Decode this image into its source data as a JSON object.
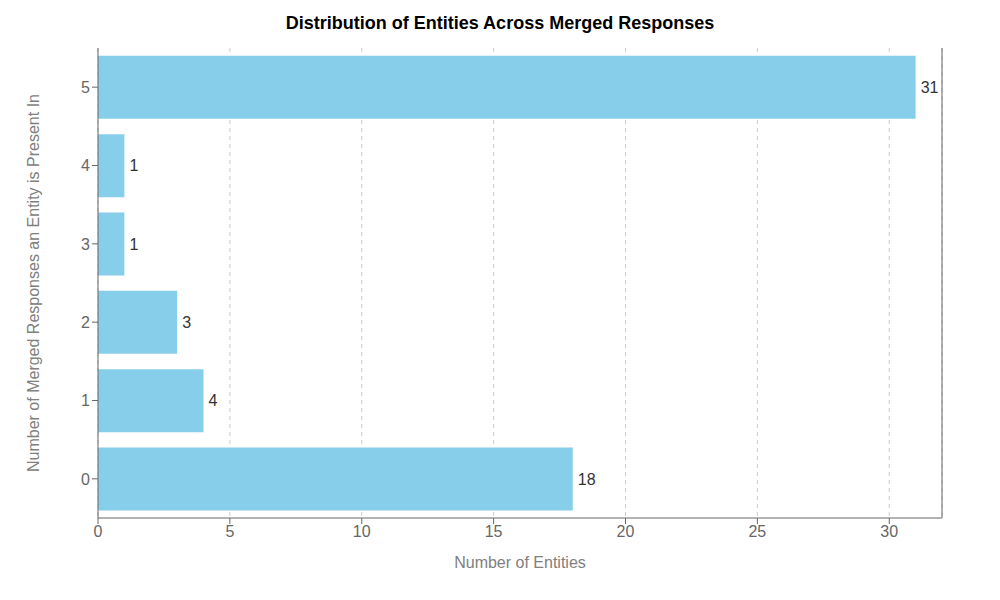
{
  "chart_data": {
    "type": "bar",
    "orientation": "horizontal",
    "title": "Distribution of Entities Across Merged Responses",
    "xlabel": "Number of Entities",
    "ylabel": "Number of Merged Responses an Entity is Present In",
    "categories": [
      0,
      1,
      2,
      3,
      4,
      5
    ],
    "values": [
      18,
      4,
      3,
      1,
      1,
      31
    ],
    "color": "#87CEEB",
    "xlim": [
      0,
      32
    ],
    "xticks": [
      0,
      5,
      10,
      15,
      20,
      25,
      30
    ],
    "grid": true,
    "data_labels": true
  }
}
